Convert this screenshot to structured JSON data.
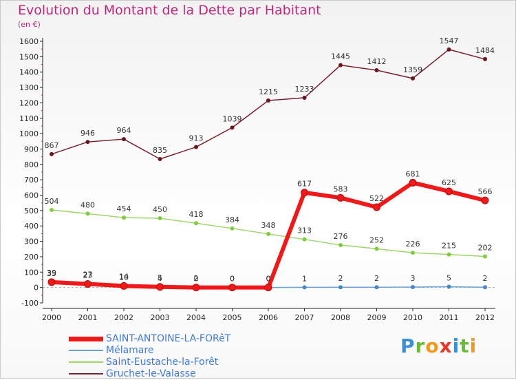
{
  "header": {
    "title": "Evolution du Montant de la Dette par Habitant",
    "unit": "(en €)"
  },
  "logo": {
    "text": "Proxiti",
    "letters": [
      {
        "ch": "P",
        "color": "#3a8fd6"
      },
      {
        "ch": "r",
        "color": "#6cba3a"
      },
      {
        "ch": "o",
        "color": "#f39a1d"
      },
      {
        "ch": "x",
        "color": "#e23a2a"
      },
      {
        "ch": "i",
        "color": "#3a8fd6"
      },
      {
        "ch": "t",
        "color": "#6cba3a"
      },
      {
        "ch": "i",
        "color": "#f39a1d"
      }
    ]
  },
  "chart_data": {
    "type": "line",
    "title": "Evolution du Montant de la Dette par Habitant",
    "ylabel": "(en €)",
    "xlabel": "",
    "categories": [
      "2000",
      "2001",
      "2002",
      "2003",
      "2004",
      "2005",
      "2006",
      "2007",
      "2008",
      "2009",
      "2010",
      "2011",
      "2012"
    ],
    "ylim": [
      -100,
      1600
    ],
    "yticks": [
      -100,
      0,
      100,
      200,
      300,
      400,
      500,
      600,
      700,
      800,
      900,
      1000,
      1100,
      1200,
      1300,
      1400,
      1500,
      1600
    ],
    "grid": false,
    "legend_position": "bottom-left",
    "series": [
      {
        "name": "Gruchet-le-Valasse",
        "color": "#7a1f2b",
        "width": 1.5,
        "marker_fill": "#6b1520",
        "values": [
          867,
          946,
          964,
          835,
          913,
          1039,
          1215,
          1233,
          1445,
          1412,
          1359,
          1547,
          1484
        ]
      },
      {
        "name": "Saint-Eustache-la-Forêt",
        "color": "#9ed66a",
        "width": 1.5,
        "marker_fill": "#7fcc3d",
        "values": [
          504,
          480,
          454,
          450,
          418,
          384,
          348,
          313,
          276,
          252,
          226,
          215,
          202
        ]
      },
      {
        "name": "Mélamare",
        "color": "#6aa3d6",
        "width": 1.5,
        "marker_fill": "#4a86c5",
        "values": [
          39,
          27,
          14,
          5,
          2,
          0,
          0,
          1,
          2,
          2,
          3,
          5,
          2
        ]
      },
      {
        "name": "SAINT-ANTOINE-LA-FORêT",
        "color": "#f01818",
        "width": 6,
        "marker_fill": "#f01818",
        "values": [
          35,
          23,
          10,
          4,
          0,
          0,
          0,
          617,
          583,
          522,
          681,
          625,
          566
        ]
      }
    ]
  }
}
